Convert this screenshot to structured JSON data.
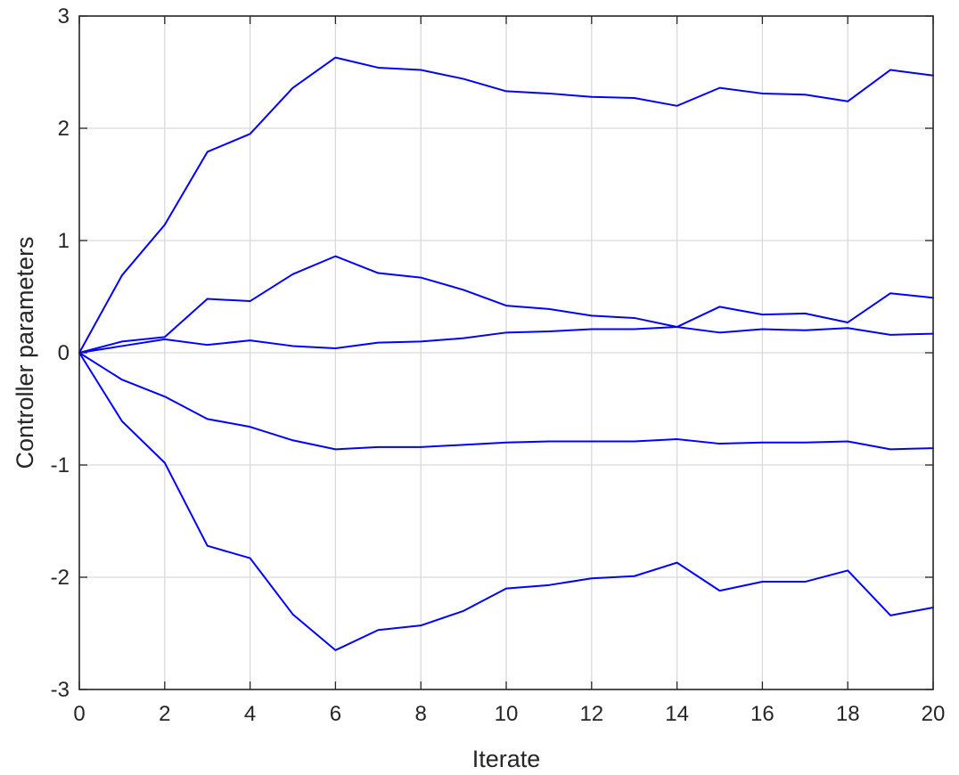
{
  "chart_data": {
    "type": "line",
    "xlabel": "Iterate",
    "ylabel": "Controller parameters",
    "xlim": [
      0,
      20
    ],
    "ylim": [
      -3,
      3
    ],
    "xticks": [
      0,
      2,
      4,
      6,
      8,
      10,
      12,
      14,
      16,
      18,
      20
    ],
    "yticks": [
      -3,
      -2,
      -1,
      0,
      1,
      2,
      3
    ],
    "grid": true,
    "legend": "none",
    "line_color": "#0000ff",
    "x": [
      0,
      1,
      2,
      3,
      4,
      5,
      6,
      7,
      8,
      9,
      10,
      11,
      12,
      13,
      14,
      15,
      16,
      17,
      18,
      19,
      20
    ],
    "series": [
      {
        "values": [
          0,
          0.69,
          1.14,
          1.79,
          1.95,
          2.36,
          2.63,
          2.54,
          2.52,
          2.44,
          2.33,
          2.31,
          2.28,
          2.27,
          2.2,
          2.36,
          2.31,
          2.3,
          2.24,
          2.52,
          2.47
        ]
      },
      {
        "values": [
          0,
          0.1,
          0.14,
          0.48,
          0.46,
          0.7,
          0.86,
          0.71,
          0.67,
          0.56,
          0.42,
          0.39,
          0.33,
          0.31,
          0.23,
          0.41,
          0.34,
          0.35,
          0.27,
          0.53,
          0.49
        ]
      },
      {
        "values": [
          0,
          0.06,
          0.12,
          0.07,
          0.11,
          0.06,
          0.04,
          0.09,
          0.1,
          0.13,
          0.18,
          0.19,
          0.21,
          0.21,
          0.23,
          0.18,
          0.21,
          0.2,
          0.22,
          0.16,
          0.17
        ]
      },
      {
        "values": [
          0,
          -0.24,
          -0.39,
          -0.59,
          -0.66,
          -0.78,
          -0.86,
          -0.84,
          -0.84,
          -0.82,
          -0.8,
          -0.79,
          -0.79,
          -0.79,
          -0.77,
          -0.81,
          -0.8,
          -0.8,
          -0.79,
          -0.86,
          -0.85
        ]
      },
      {
        "values": [
          0,
          -0.61,
          -0.98,
          -1.72,
          -1.83,
          -2.33,
          -2.65,
          -2.47,
          -2.43,
          -2.3,
          -2.1,
          -2.07,
          -2.01,
          -1.99,
          -1.87,
          -2.12,
          -2.04,
          -2.04,
          -1.94,
          -2.34,
          -2.27
        ]
      }
    ]
  }
}
